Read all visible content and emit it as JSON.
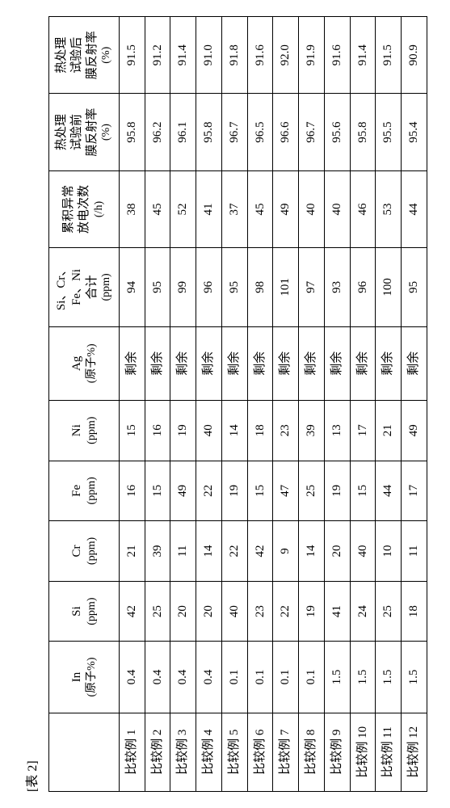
{
  "caption": "[表 2]",
  "headers": {
    "label": "",
    "in": "In",
    "in_sub": "(原子%)",
    "si": "Si",
    "si_sub": "(ppm)",
    "cr": "Cr",
    "cr_sub": "(ppm)",
    "fe": "Fe",
    "fe_sub": "(ppm)",
    "ni": "Ni",
    "ni_sub": "(ppm)",
    "ag": "Ag",
    "ag_sub": "(原子%)",
    "sum": "Si、Cr、\nFe、Ni\n合计",
    "sum_sub": "(ppm)",
    "disc": "累积异常\n放电次数",
    "disc_sub": "(/h)",
    "pre": "热处理\n试验前\n膜反射率",
    "pre_sub": "(%)",
    "post": "热处理\n试验后\n膜反射率",
    "post_sub": "(%)"
  },
  "rows": [
    {
      "label": "比较例 1",
      "in": "0.4",
      "si": "42",
      "cr": "21",
      "fe": "16",
      "ni": "15",
      "ag": "剩余",
      "sum": "94",
      "disc": "38",
      "pre": "95.8",
      "post": "91.5"
    },
    {
      "label": "比较例 2",
      "in": "0.4",
      "si": "25",
      "cr": "39",
      "fe": "15",
      "ni": "16",
      "ag": "剩余",
      "sum": "95",
      "disc": "45",
      "pre": "96.2",
      "post": "91.2"
    },
    {
      "label": "比较例 3",
      "in": "0.4",
      "si": "20",
      "cr": "11",
      "fe": "49",
      "ni": "19",
      "ag": "剩余",
      "sum": "99",
      "disc": "52",
      "pre": "96.1",
      "post": "91.4"
    },
    {
      "label": "比较例 4",
      "in": "0.4",
      "si": "20",
      "cr": "14",
      "fe": "22",
      "ni": "40",
      "ag": "剩余",
      "sum": "96",
      "disc": "41",
      "pre": "95.8",
      "post": "91.0"
    },
    {
      "label": "比较例 5",
      "in": "0.1",
      "si": "40",
      "cr": "22",
      "fe": "19",
      "ni": "14",
      "ag": "剩余",
      "sum": "95",
      "disc": "37",
      "pre": "96.7",
      "post": "91.8"
    },
    {
      "label": "比较例 6",
      "in": "0.1",
      "si": "23",
      "cr": "42",
      "fe": "15",
      "ni": "18",
      "ag": "剩余",
      "sum": "98",
      "disc": "45",
      "pre": "96.5",
      "post": "91.6"
    },
    {
      "label": "比较例 7",
      "in": "0.1",
      "si": "22",
      "cr": "9",
      "fe": "47",
      "ni": "23",
      "ag": "剩余",
      "sum": "101",
      "disc": "49",
      "pre": "96.6",
      "post": "92.0"
    },
    {
      "label": "比较例 8",
      "in": "0.1",
      "si": "19",
      "cr": "14",
      "fe": "25",
      "ni": "39",
      "ag": "剩余",
      "sum": "97",
      "disc": "40",
      "pre": "96.7",
      "post": "91.9"
    },
    {
      "label": "比较例 9",
      "in": "1.5",
      "si": "41",
      "cr": "20",
      "fe": "19",
      "ni": "13",
      "ag": "剩余",
      "sum": "93",
      "disc": "40",
      "pre": "95.6",
      "post": "91.6"
    },
    {
      "label": "比较例 10",
      "in": "1.5",
      "si": "24",
      "cr": "40",
      "fe": "15",
      "ni": "17",
      "ag": "剩余",
      "sum": "96",
      "disc": "46",
      "pre": "95.8",
      "post": "91.4"
    },
    {
      "label": "比较例 11",
      "in": "1.5",
      "si": "25",
      "cr": "10",
      "fe": "44",
      "ni": "21",
      "ag": "剩余",
      "sum": "100",
      "disc": "53",
      "pre": "95.5",
      "post": "91.5"
    },
    {
      "label": "比较例 12",
      "in": "1.5",
      "si": "18",
      "cr": "11",
      "fe": "17",
      "ni": "49",
      "ag": "剩余",
      "sum": "95",
      "disc": "44",
      "pre": "95.4",
      "post": "90.9"
    }
  ],
  "style": {
    "background_color": "#ffffff",
    "border_color": "#000000",
    "text_color": "#000000",
    "header_fontsize": 15,
    "cell_fontsize": 15,
    "font_family": "serif"
  }
}
